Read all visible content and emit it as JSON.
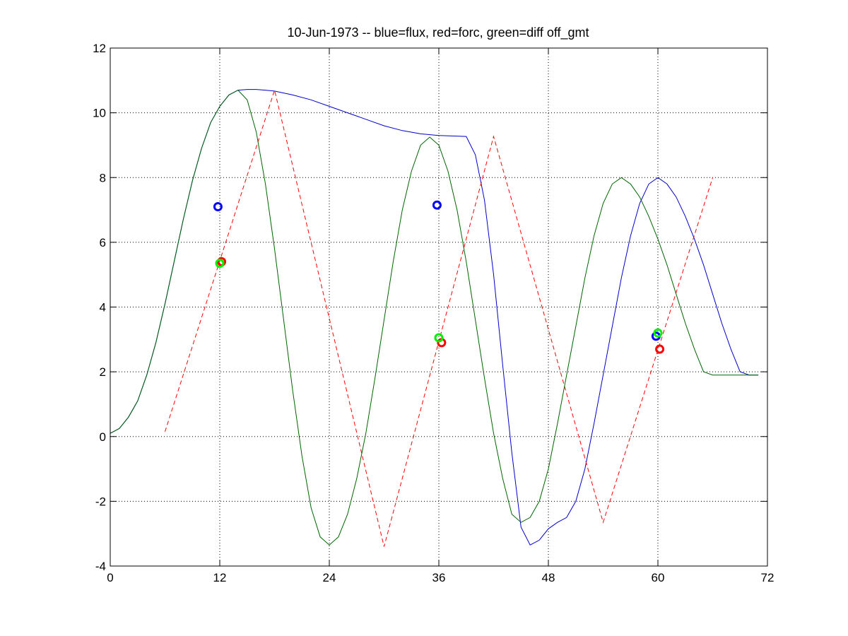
{
  "chart_data": {
    "type": "line",
    "title": "10-Jun-1973 -- blue=flux, red=forc, green=diff off_gmt",
    "xlabel": "",
    "ylabel": "",
    "xlim": [
      0,
      72
    ],
    "ylim": [
      -4,
      12
    ],
    "xticks": [
      0,
      12,
      24,
      36,
      48,
      60,
      72
    ],
    "yticks": [
      -4,
      -2,
      0,
      2,
      4,
      6,
      8,
      10,
      12
    ],
    "x_grid_ticks": [
      12,
      24,
      36,
      48,
      60
    ],
    "y_grid_ticks": [
      -2,
      0,
      2,
      4,
      6,
      8,
      10
    ],
    "grid": true,
    "colors": {
      "flux": "#0000cc",
      "forc": "#ff0000",
      "diff": "#006400",
      "marker_blue": "#0000ff",
      "marker_red": "#ff0000",
      "marker_green": "#00ee00"
    },
    "series": [
      {
        "name": "flux",
        "style": "solid",
        "color": "#0000cc",
        "x": [
          0,
          1,
          2,
          3,
          4,
          5,
          6,
          7,
          8,
          9,
          10,
          11,
          12,
          13,
          14,
          15,
          16,
          17,
          18,
          20,
          22,
          24,
          26,
          28,
          30,
          32,
          34,
          36,
          38,
          39,
          40,
          41,
          42,
          43,
          44,
          45,
          46,
          47,
          48,
          49,
          50,
          51,
          52,
          53,
          54,
          55,
          56,
          57,
          58,
          59,
          60,
          61,
          62,
          63,
          64,
          65,
          66,
          67,
          68,
          69,
          70,
          71
        ],
        "y": [
          0.1,
          0.25,
          0.6,
          1.1,
          1.9,
          2.9,
          4.1,
          5.4,
          6.7,
          7.9,
          8.9,
          9.7,
          10.2,
          10.55,
          10.7,
          10.72,
          10.72,
          10.7,
          10.67,
          10.55,
          10.4,
          10.2,
          10.0,
          9.8,
          9.6,
          9.45,
          9.35,
          9.3,
          9.28,
          9.27,
          8.7,
          7.3,
          5.0,
          2.2,
          -0.5,
          -2.8,
          -3.35,
          -3.2,
          -2.85,
          -2.65,
          -2.5,
          -2.0,
          -1.0,
          0.4,
          1.9,
          3.4,
          4.9,
          6.2,
          7.2,
          7.8,
          8.0,
          7.8,
          7.4,
          6.8,
          6.1,
          5.3,
          4.4,
          3.5,
          2.7,
          2.0,
          1.9,
          1.9
        ]
      },
      {
        "name": "forc",
        "style": "dashed",
        "color": "#ff0000",
        "x": [
          6,
          18,
          30,
          42,
          54,
          66
        ],
        "y": [
          0.15,
          10.7,
          -3.4,
          9.27,
          -2.65,
          8.0
        ]
      },
      {
        "name": "diff",
        "style": "solid",
        "color": "#006400",
        "x": [
          0,
          1,
          2,
          3,
          4,
          5,
          6,
          7,
          8,
          9,
          10,
          11,
          12,
          13,
          14,
          15,
          16,
          17,
          18,
          19,
          20,
          21,
          22,
          23,
          24,
          25,
          26,
          27,
          28,
          29,
          30,
          31,
          32,
          33,
          34,
          35,
          36,
          37,
          38,
          39,
          40,
          41,
          42,
          43,
          44,
          45,
          46,
          47,
          48,
          49,
          50,
          51,
          52,
          53,
          54,
          55,
          56,
          57,
          58,
          59,
          60,
          61,
          62,
          63,
          64,
          65,
          66,
          67,
          68,
          69,
          70,
          71
        ],
        "y": [
          0.1,
          0.25,
          0.6,
          1.1,
          1.9,
          2.9,
          4.1,
          5.4,
          6.7,
          7.9,
          8.9,
          9.7,
          10.2,
          10.55,
          10.7,
          10.4,
          9.4,
          7.8,
          5.8,
          3.6,
          1.4,
          -0.6,
          -2.2,
          -3.1,
          -3.35,
          -3.1,
          -2.4,
          -1.3,
          0.1,
          1.8,
          3.6,
          5.4,
          7.0,
          8.2,
          9.0,
          9.25,
          9.0,
          8.2,
          7.0,
          5.4,
          3.6,
          1.8,
          0.1,
          -1.3,
          -2.4,
          -2.65,
          -2.5,
          -2.0,
          -1.0,
          0.4,
          1.9,
          3.4,
          4.9,
          6.2,
          7.2,
          7.8,
          8.0,
          7.8,
          7.4,
          6.8,
          6.1,
          5.3,
          4.4,
          3.5,
          2.7,
          2.0,
          1.9,
          1.9,
          1.9,
          1.9,
          1.9,
          1.9
        ]
      }
    ],
    "markers": [
      {
        "name": "flux",
        "color": "#0000ff",
        "x": 11.8,
        "y": 7.1
      },
      {
        "name": "forc",
        "color": "#ff0000",
        "x": 12.2,
        "y": 5.4
      },
      {
        "name": "diff",
        "color": "#00ee00",
        "x": 12.0,
        "y": 5.35
      },
      {
        "name": "flux",
        "color": "#0000ff",
        "x": 35.8,
        "y": 7.15
      },
      {
        "name": "forc",
        "color": "#ff0000",
        "x": 36.3,
        "y": 2.9
      },
      {
        "name": "diff",
        "color": "#00ee00",
        "x": 36.0,
        "y": 3.05
      },
      {
        "name": "flux",
        "color": "#0000ff",
        "x": 59.8,
        "y": 3.1
      },
      {
        "name": "forc",
        "color": "#ff0000",
        "x": 60.2,
        "y": 2.7
      },
      {
        "name": "diff",
        "color": "#00ee00",
        "x": 60.0,
        "y": 3.2
      }
    ]
  }
}
